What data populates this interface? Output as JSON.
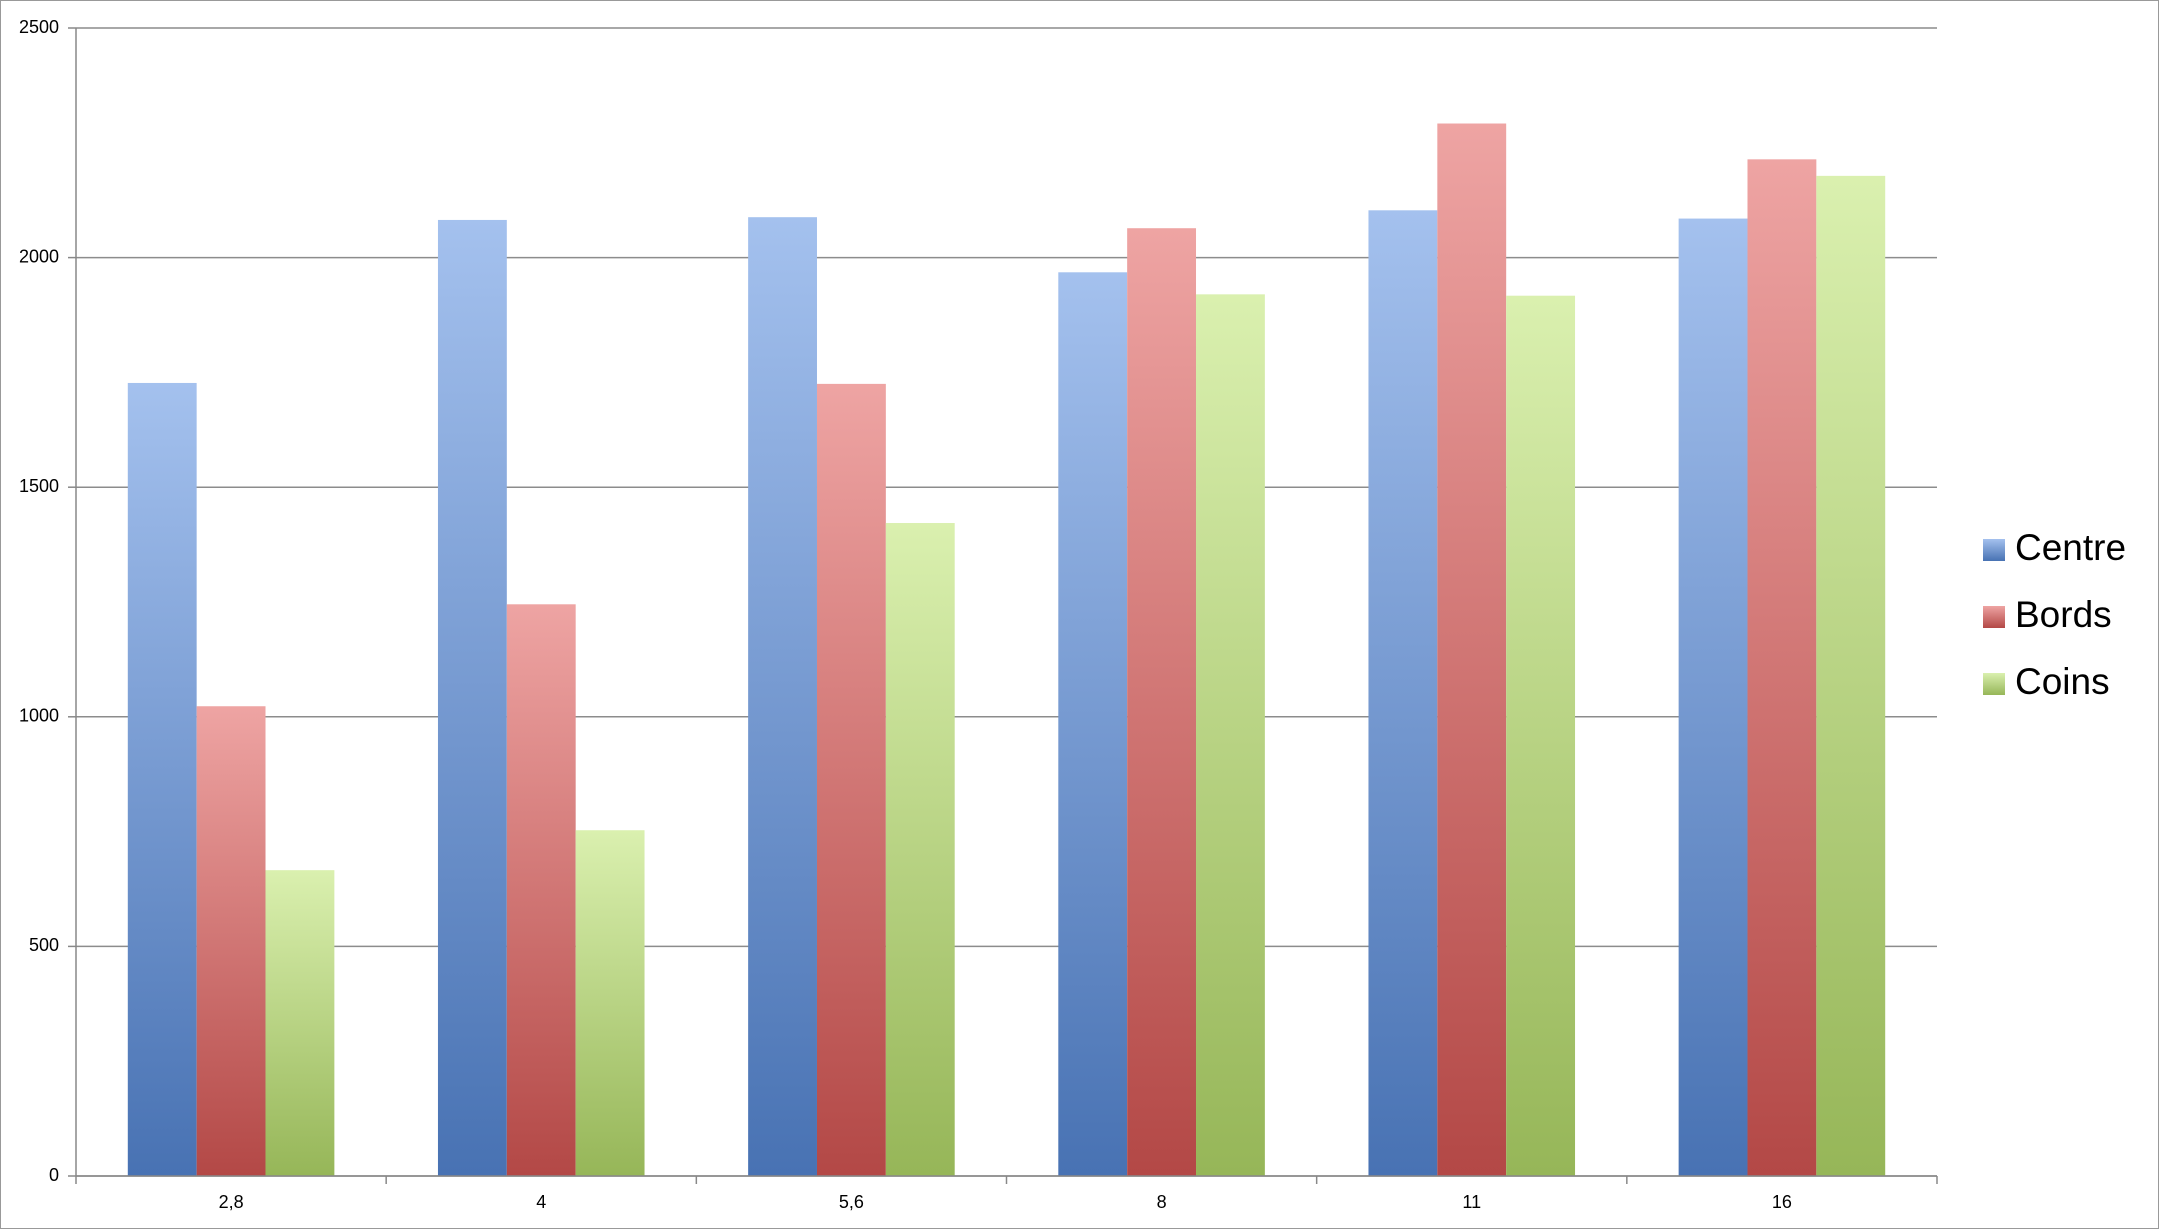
{
  "chart_data": {
    "type": "bar",
    "categories": [
      "2,8",
      "4",
      "5,6",
      "8",
      "11",
      "16"
    ],
    "series": [
      {
        "name": "Centre",
        "color": "#5a8fe0",
        "values": [
          1727,
          2082,
          2088,
          1968,
          2103,
          2085
        ]
      },
      {
        "name": "Bords",
        "color": "#e05a57",
        "values": [
          1023,
          1245,
          1725,
          2064,
          2292,
          2214
        ]
      },
      {
        "name": "Coins",
        "color": "#bce36e",
        "values": [
          666,
          753,
          1422,
          1920,
          1917,
          2178
        ]
      }
    ],
    "ylim": [
      0,
      2500
    ],
    "yticks": [
      0,
      500,
      1000,
      1500,
      2000,
      2500
    ],
    "grid": true,
    "legend": "right"
  }
}
